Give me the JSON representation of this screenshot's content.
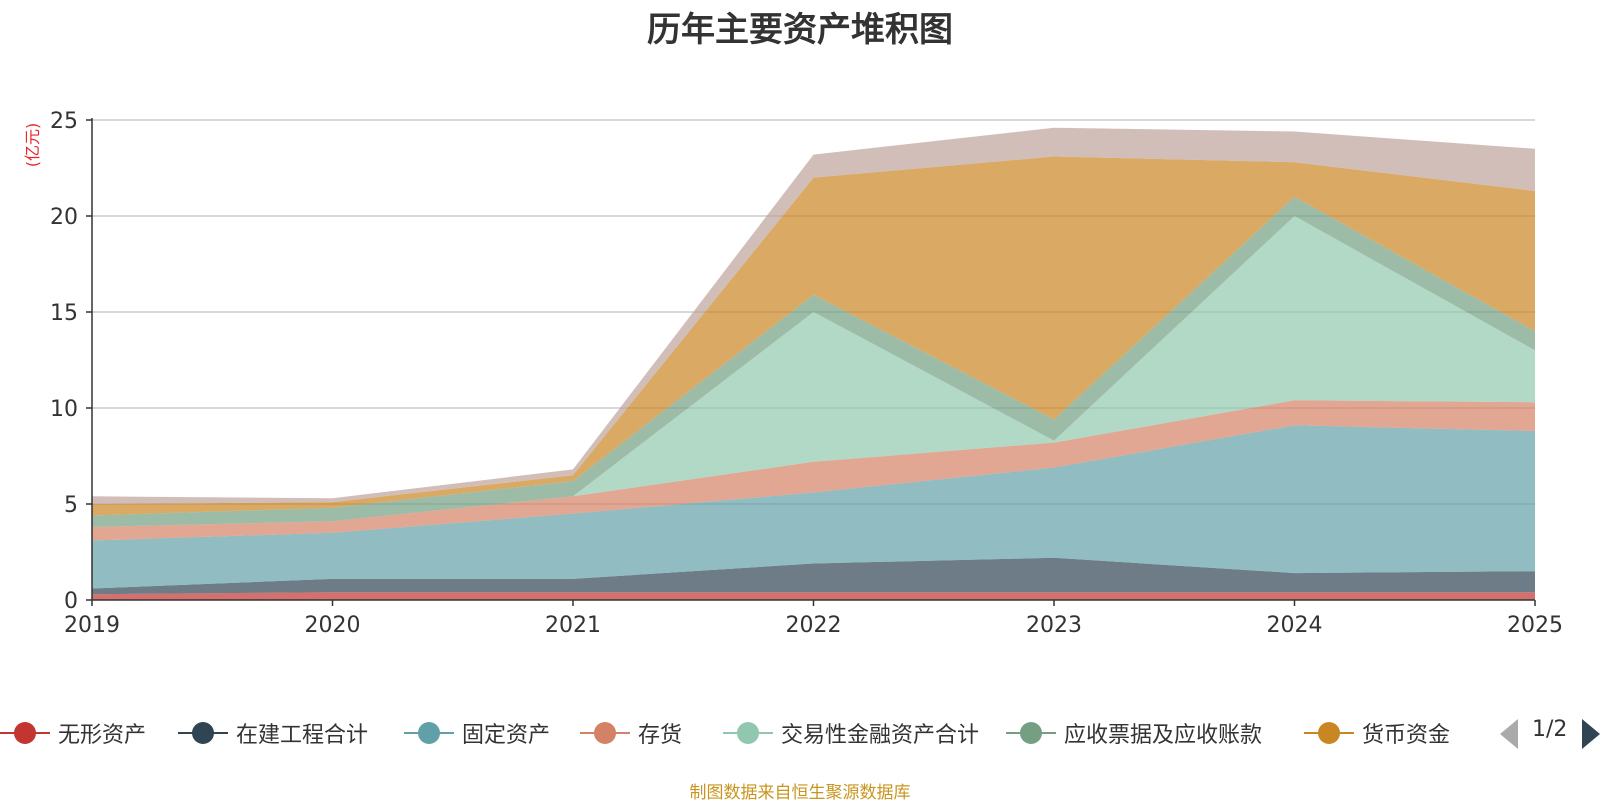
{
  "chart_data": {
    "type": "area",
    "stacked": true,
    "title": "历年主要资产堆积图",
    "unit_label": "(亿元)",
    "categories": [
      "2019",
      "2020",
      "2021",
      "2022",
      "2023",
      "2024",
      "2025"
    ],
    "ylim": [
      0,
      25
    ],
    "yticks": [
      0,
      5,
      10,
      15,
      20,
      25
    ],
    "grid": true,
    "legend_position": "bottom",
    "series": [
      {
        "name": "无形资产",
        "color": "#c23531",
        "values": [
          0.3,
          0.4,
          0.4,
          0.4,
          0.4,
          0.4,
          0.4
        ]
      },
      {
        "name": "在建工程合计",
        "color": "#2f4554",
        "values": [
          0.3,
          0.7,
          0.7,
          1.5,
          1.8,
          1.0,
          1.1
        ]
      },
      {
        "name": "固定资产",
        "color": "#61a0a8",
        "values": [
          2.5,
          2.4,
          3.4,
          3.7,
          4.7,
          7.7,
          7.3
        ]
      },
      {
        "name": "存货",
        "color": "#d48265",
        "values": [
          0.7,
          0.6,
          0.9,
          1.6,
          1.3,
          1.3,
          1.5
        ]
      },
      {
        "name": "交易性金融资产合计",
        "color": "#91c7ae",
        "values": [
          0.0,
          0.0,
          0.0,
          7.8,
          0.1,
          9.6,
          2.7
        ]
      },
      {
        "name": "应收票据及应收账款",
        "color": "#749f83",
        "values": [
          0.6,
          0.7,
          0.8,
          0.9,
          1.1,
          1.0,
          1.0
        ]
      },
      {
        "name": "货币资金",
        "color": "#ca8622",
        "values": [
          0.6,
          0.3,
          0.3,
          6.1,
          13.7,
          1.8,
          7.3
        ]
      },
      {
        "name": "",
        "color": "#bda29a",
        "values": [
          0.4,
          0.2,
          0.3,
          1.2,
          1.5,
          1.6,
          2.2
        ]
      }
    ]
  },
  "legend": {
    "page_text": "1/2"
  },
  "source_note": "制图数据来自恒生聚源数据库"
}
